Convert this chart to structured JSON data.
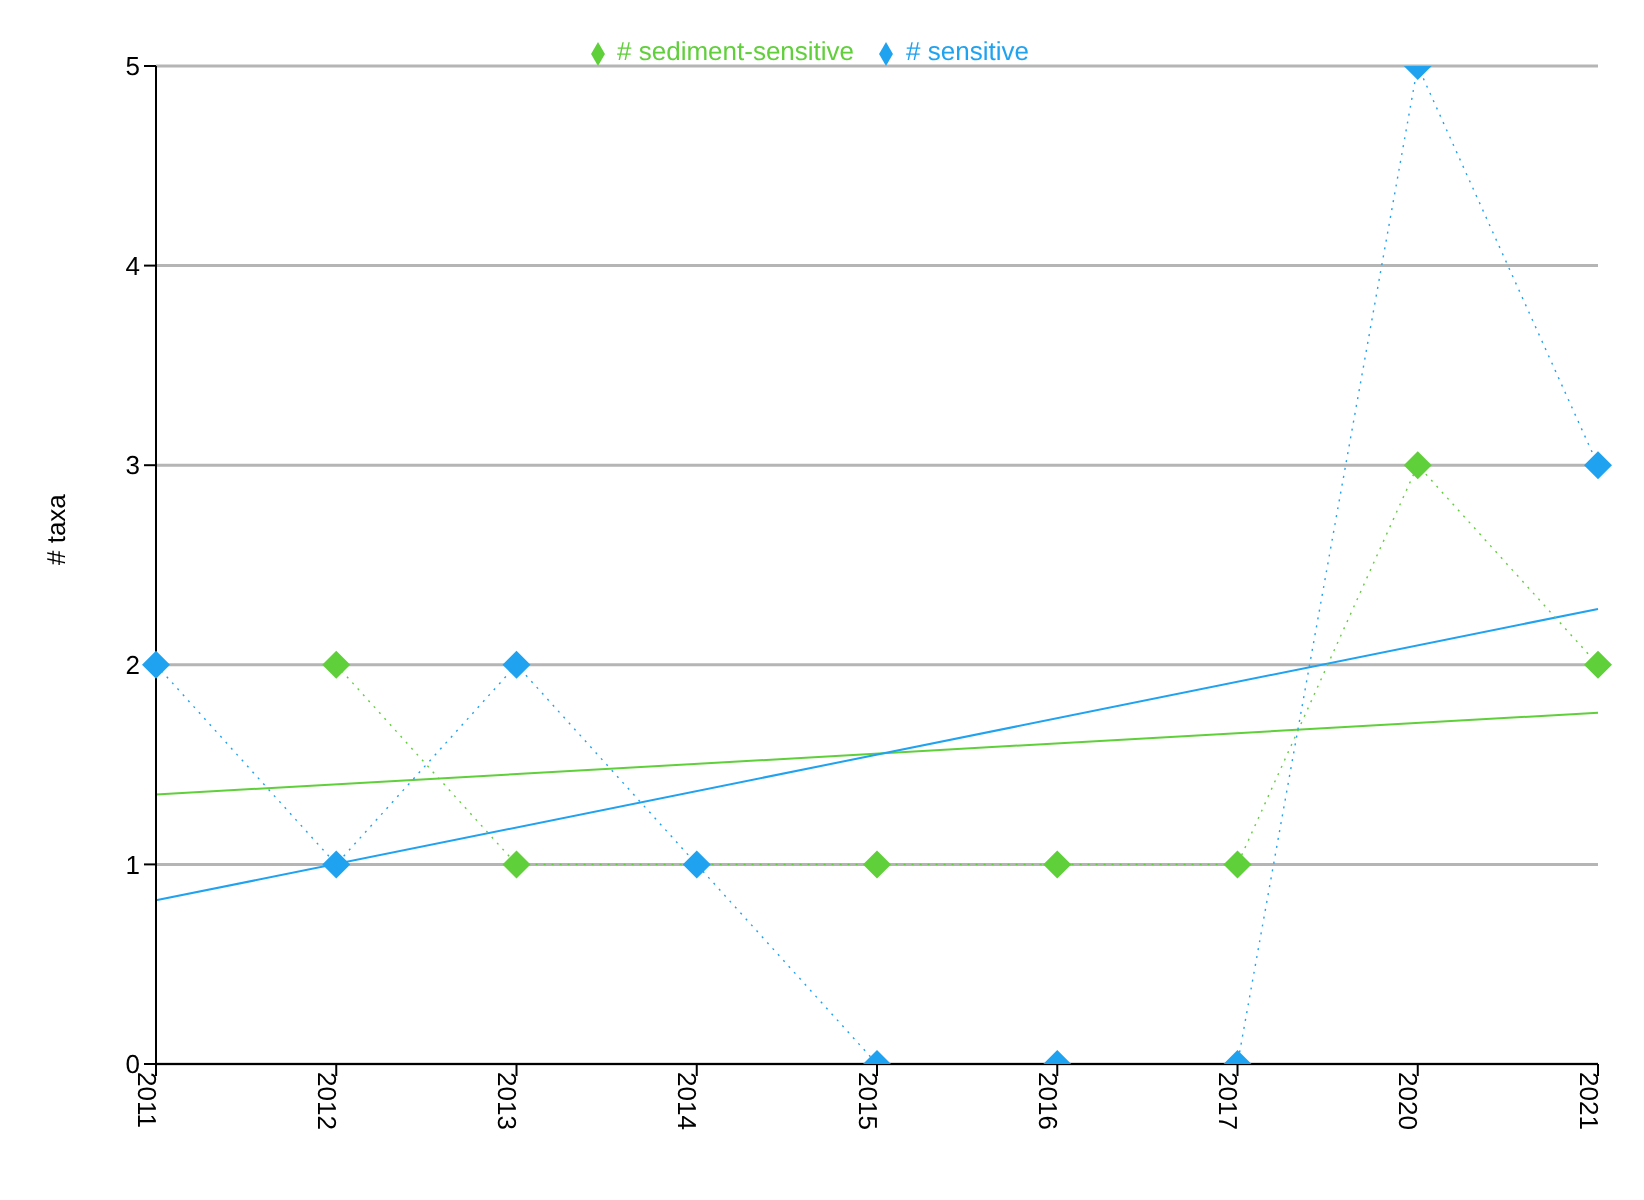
{
  "chart_data": {
    "type": "line",
    "ylabel": "# taxa",
    "categories": [
      "2011",
      "2012",
      "2013",
      "2014",
      "2015",
      "2016",
      "2017",
      "2020",
      "2021"
    ],
    "series": [
      {
        "name": "# sensitive",
        "color": "#1fa2f0",
        "marker": "diamond",
        "line_style": "dotted",
        "values": [
          2,
          1,
          2,
          1,
          0,
          0,
          0,
          5,
          3
        ]
      },
      {
        "name": "# sediment-sensitive",
        "color": "#5fcf3a",
        "marker": "diamond",
        "line_style": "dotted",
        "values": [
          null,
          2,
          1,
          null,
          1,
          1,
          1,
          3,
          2
        ]
      },
      {
        "color": "#1fa2f0",
        "marker": "none",
        "line_style": "solid",
        "values": [
          0.82,
          null,
          null,
          null,
          null,
          null,
          null,
          null,
          2.28
        ]
      },
      {
        "color": "#5fcf3a",
        "marker": "none",
        "line_style": "solid",
        "values": [
          1.35,
          null,
          null,
          null,
          null,
          null,
          null,
          null,
          1.76
        ]
      }
    ],
    "ylim": [
      0,
      5
    ],
    "yticks": [
      0,
      1,
      2,
      3,
      4,
      5
    ],
    "grid": "y",
    "legend": "top"
  }
}
